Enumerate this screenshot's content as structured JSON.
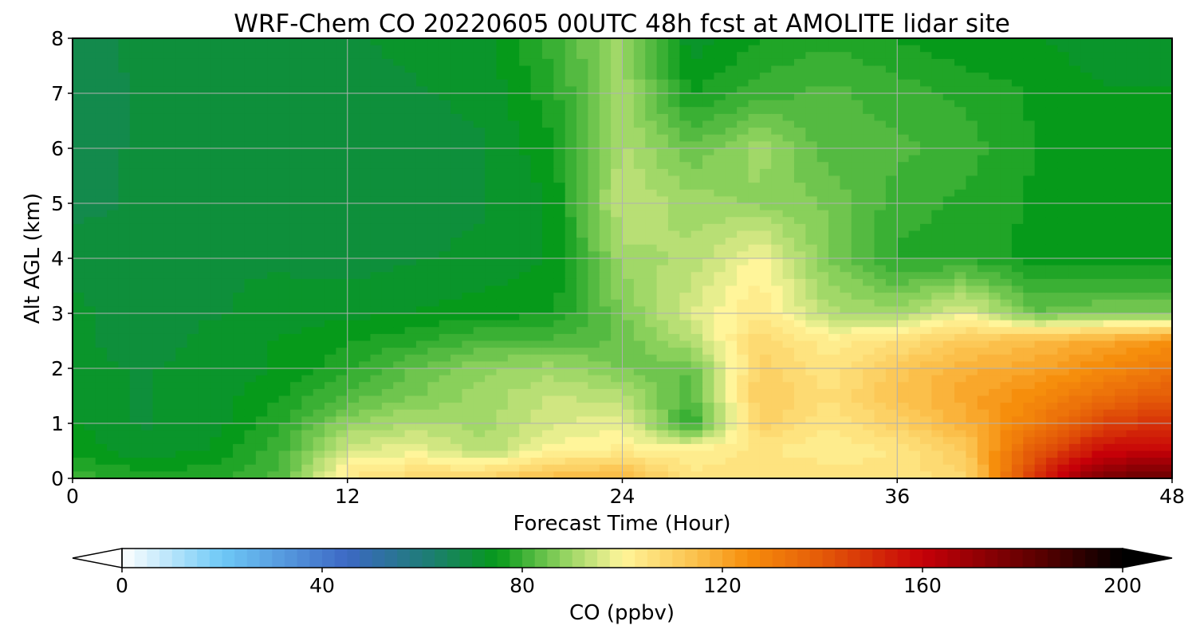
{
  "chart_data": {
    "type": "heatmap",
    "title": "WRF-Chem CO  20220605 00UTC 48h fcst at AMOLITE lidar site",
    "xlabel": "Forecast Time (Hour)",
    "ylabel": "Alt AGL (km)",
    "xlim": [
      0,
      48
    ],
    "ylim": [
      0,
      8
    ],
    "x_ticks": [
      0,
      12,
      24,
      36,
      48
    ],
    "y_ticks": [
      0,
      1,
      2,
      3,
      4,
      5,
      6,
      7,
      8
    ],
    "grid": true,
    "x": [
      0,
      3,
      6,
      9,
      12,
      15,
      18,
      21,
      24,
      27,
      30,
      33,
      36,
      39,
      42,
      45,
      48
    ],
    "y": [
      0,
      0.5,
      1,
      1.5,
      2,
      2.5,
      3,
      4,
      5,
      6,
      7,
      8
    ],
    "z": [
      [
        80,
        78,
        78,
        82,
        104,
        108,
        110,
        116,
        118,
        104,
        106,
        106,
        104,
        108,
        150,
        178,
        180
      ],
      [
        76,
        72,
        74,
        80,
        96,
        98,
        92,
        100,
        102,
        102,
        104,
        102,
        104,
        112,
        140,
        158,
        160
      ],
      [
        74,
        71,
        72,
        78,
        88,
        92,
        90,
        96,
        98,
        78,
        110,
        104,
        110,
        118,
        130,
        145,
        150
      ],
      [
        73,
        71,
        72,
        76,
        82,
        86,
        90,
        94,
        92,
        82,
        112,
        106,
        114,
        120,
        126,
        134,
        140
      ],
      [
        72,
        71,
        72,
        74,
        78,
        84,
        88,
        90,
        86,
        84,
        110,
        104,
        112,
        118,
        120,
        126,
        132
      ],
      [
        72,
        70,
        72,
        74,
        76,
        78,
        82,
        82,
        84,
        92,
        108,
        102,
        106,
        112,
        116,
        120,
        124
      ],
      [
        72,
        70,
        71,
        72,
        73,
        74,
        75,
        76,
        86,
        96,
        104,
        92,
        90,
        98,
        84,
        86,
        86
      ],
      [
        70,
        70,
        71,
        71,
        70,
        71,
        72,
        74,
        90,
        92,
        100,
        86,
        78,
        78,
        75,
        75,
        74
      ],
      [
        68,
        69,
        70,
        70,
        69,
        70,
        71,
        74,
        94,
        90,
        88,
        86,
        80,
        78,
        76,
        74,
        74
      ],
      [
        68,
        69,
        70,
        70,
        69,
        70,
        71,
        76,
        92,
        84,
        90,
        82,
        82,
        80,
        76,
        74,
        74
      ],
      [
        67,
        69,
        70,
        70,
        70,
        71,
        72,
        78,
        90,
        76,
        80,
        82,
        80,
        78,
        76,
        74,
        74
      ],
      [
        67,
        70,
        70,
        71,
        71,
        72,
        73,
        80,
        90,
        72,
        76,
        78,
        76,
        74,
        74,
        72,
        72
      ]
    ],
    "colorbar": {
      "label": "CO  (ppbv)",
      "ticks": [
        0,
        40,
        80,
        120,
        160,
        200
      ],
      "range": [
        0,
        200
      ],
      "extend": "both",
      "colors": [
        {
          "v": 0,
          "c": "#ffffff"
        },
        {
          "v": 20,
          "c": "#6ec9f6"
        },
        {
          "v": 45,
          "c": "#3c68c4"
        },
        {
          "v": 62,
          "c": "#1c7e70"
        },
        {
          "v": 75,
          "c": "#069a1a"
        },
        {
          "v": 88,
          "c": "#8ed25e"
        },
        {
          "v": 100,
          "c": "#fff59a"
        },
        {
          "v": 115,
          "c": "#fbbf4a"
        },
        {
          "v": 125,
          "c": "#f68e0c"
        },
        {
          "v": 140,
          "c": "#e45a08"
        },
        {
          "v": 160,
          "c": "#c60008"
        },
        {
          "v": 185,
          "c": "#520000"
        },
        {
          "v": 200,
          "c": "#000000"
        }
      ]
    }
  }
}
